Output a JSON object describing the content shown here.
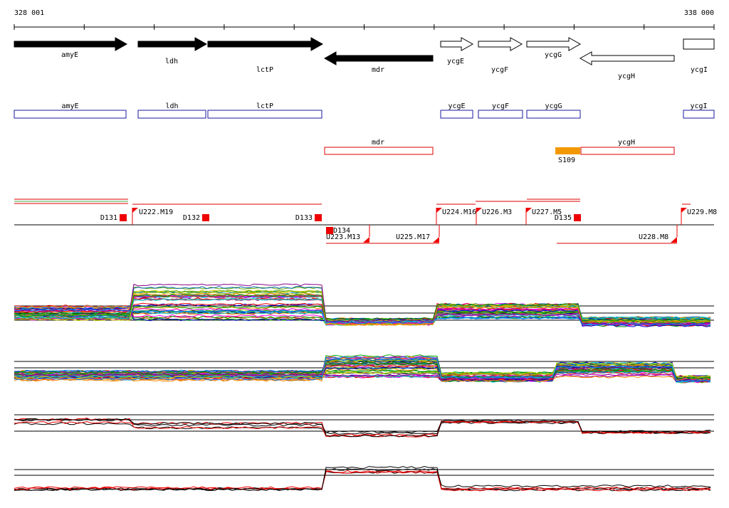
{
  "ruler": {
    "start": "328 001",
    "end": "338 000"
  },
  "genes": [
    {
      "label": "amyE"
    },
    {
      "label": "ldh"
    },
    {
      "label": "lctP"
    },
    {
      "label": "mdr"
    },
    {
      "label": "ycgE"
    },
    {
      "label": "ycgF"
    },
    {
      "label": "ycgG"
    },
    {
      "label": "ycgH"
    },
    {
      "label": "ycgI"
    }
  ],
  "annotations": [
    {
      "label": "amyE"
    },
    {
      "label": "ldh"
    },
    {
      "label": "lctP"
    },
    {
      "label": "ycgE"
    },
    {
      "label": "ycgF"
    },
    {
      "label": "ycgG"
    },
    {
      "label": "ycgI"
    }
  ],
  "reverse_annotations": [
    {
      "label": "mdr"
    },
    {
      "label": "ycgH"
    },
    {
      "label": "S109"
    }
  ],
  "markers": [
    {
      "label": "D131"
    },
    {
      "label": "U222.M19"
    },
    {
      "label": "D132"
    },
    {
      "label": "D133"
    },
    {
      "label": "D134"
    },
    {
      "label": "U223.M13"
    },
    {
      "label": "U225.M17"
    },
    {
      "label": "U224.M16"
    },
    {
      "label": "U226.M3"
    },
    {
      "label": "U227.M5"
    },
    {
      "label": "D135"
    },
    {
      "label": "U228.M8"
    },
    {
      "label": "U229.M8"
    }
  ]
}
